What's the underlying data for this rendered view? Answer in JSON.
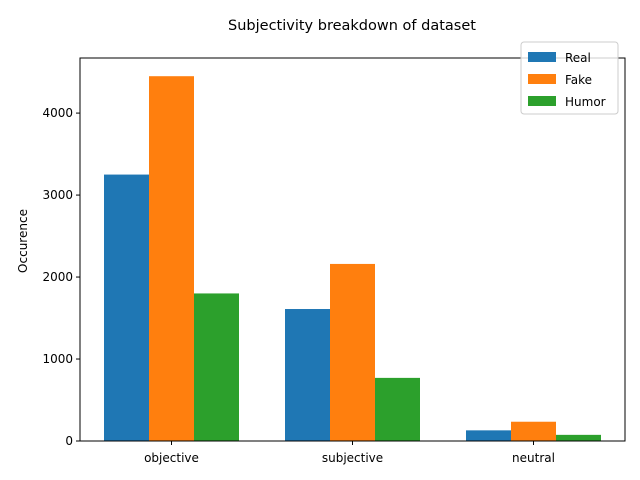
{
  "chart_data": {
    "type": "bar",
    "title": "Subjectivity breakdown of dataset",
    "xlabel": "",
    "ylabel": "Occurence",
    "categories": [
      "objective",
      "subjective",
      "neutral"
    ],
    "series": [
      {
        "name": "Real",
        "color": "#1f77b4",
        "values": [
          3250,
          1610,
          130
        ]
      },
      {
        "name": "Fake",
        "color": "#ff7f0e",
        "values": [
          4450,
          2160,
          235
        ]
      },
      {
        "name": "Humor",
        "color": "#2ca02c",
        "values": [
          1800,
          770,
          75
        ]
      }
    ],
    "ylim": [
      0,
      4672
    ],
    "yticks": [
      0,
      1000,
      2000,
      3000,
      4000
    ],
    "grid": false,
    "legend_position": "top-right"
  }
}
